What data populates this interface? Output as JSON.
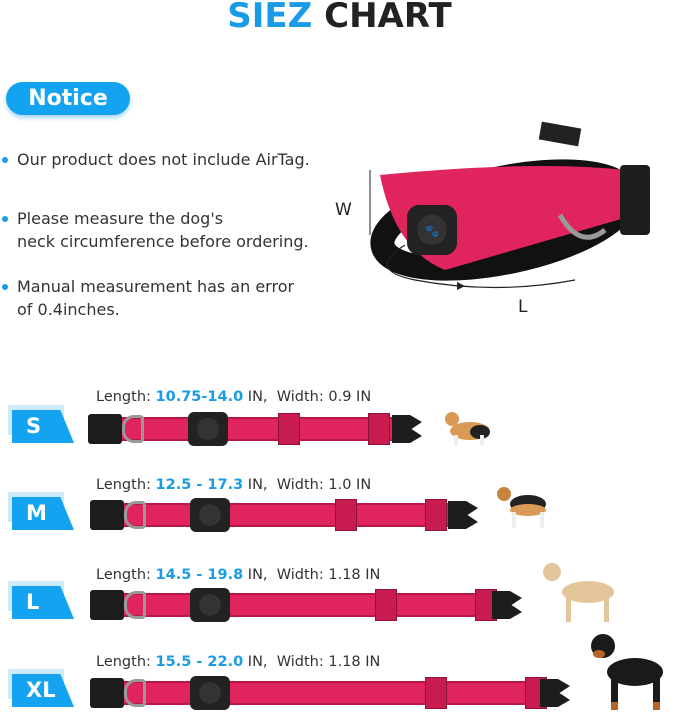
{
  "header": {
    "title_highlight": "SIEZ",
    "title_rest": "CHART"
  },
  "notice": {
    "label": "Notice",
    "bullets": [
      [
        "Our product does not include AirTag."
      ],
      [
        "Please measure the dog's",
        "neck circumference before ordering."
      ],
      [
        "Manual measurement has an error",
        "of 0.4inches."
      ]
    ]
  },
  "hero": {
    "width_label": "W",
    "length_label": "L"
  },
  "sizes": [
    {
      "size": "S",
      "length_label": "Length:",
      "length": "10.75-14.0",
      "length_unit": "IN,",
      "width_label": "Width:",
      "width": "0.9 IN"
    },
    {
      "size": "M",
      "length_label": "Length:",
      "length": "12.5 - 17.3",
      "length_unit": "IN,",
      "width_label": "Width:",
      "width": "1.0 IN"
    },
    {
      "size": "L",
      "length_label": "Length:",
      "length": "14.5 - 19.8",
      "length_unit": "IN,",
      "width_label": "Width:",
      "width": "1.18 IN"
    },
    {
      "size": "XL",
      "length_label": "Length:",
      "length": "15.5 - 22.0",
      "length_unit": "IN,",
      "width_label": "Width:",
      "width": "1.18 IN"
    }
  ],
  "colors": {
    "accent": "#14a3f0",
    "collar": "#e0245e",
    "text": "#333333"
  }
}
